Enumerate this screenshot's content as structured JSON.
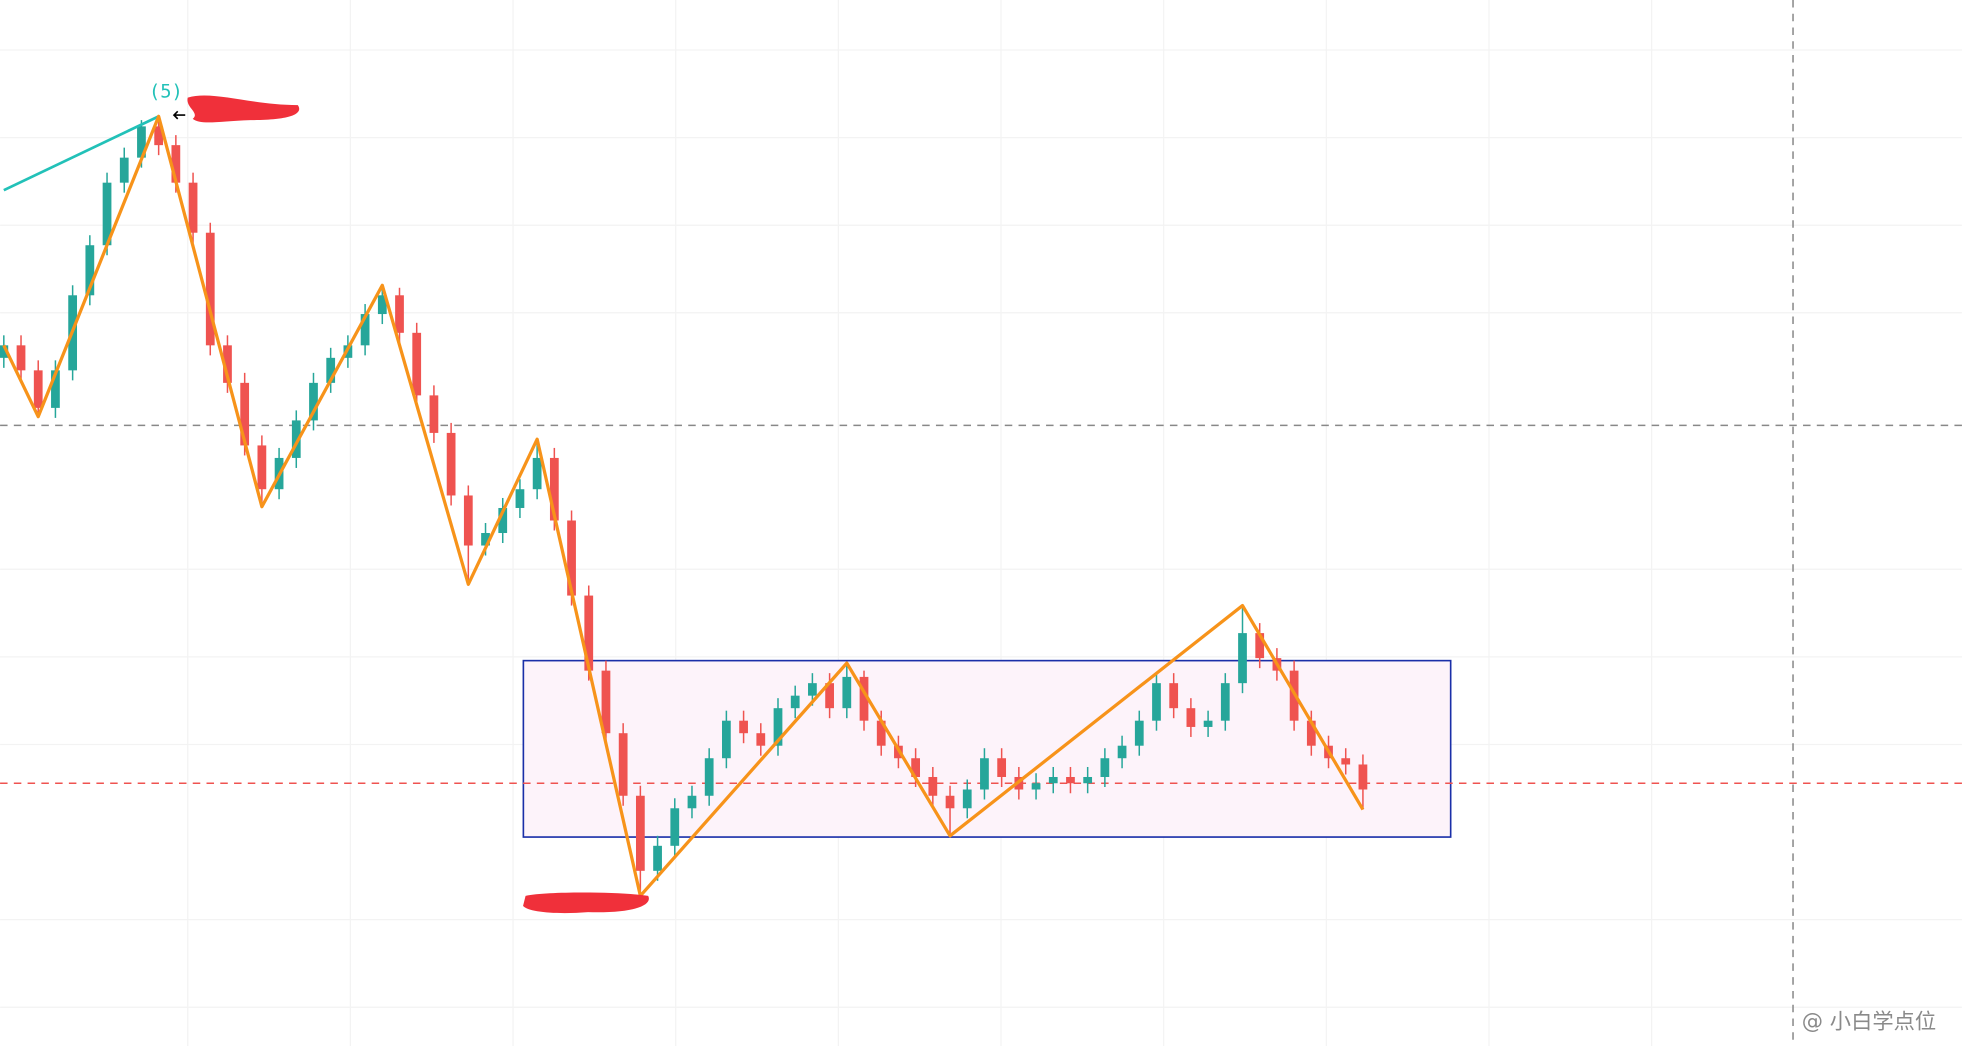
{
  "chart_data": {
    "type": "candlestick",
    "ylim": [
      0,
      836
    ],
    "open": [
      550,
      560,
      540,
      510,
      540,
      600,
      640,
      690,
      710,
      735,
      720,
      690,
      650,
      560,
      530,
      480,
      445,
      470,
      500,
      530,
      550,
      560,
      585,
      600,
      570,
      520,
      490,
      440,
      400,
      410,
      430,
      445,
      470,
      420,
      360,
      300,
      250,
      200,
      140,
      160,
      190,
      200,
      230,
      260,
      250,
      240,
      270,
      280,
      290,
      270,
      295,
      260,
      240,
      230,
      215,
      200,
      190,
      205,
      230,
      215,
      205,
      210,
      215,
      210,
      215,
      230,
      240,
      260,
      290,
      270,
      255,
      260,
      290,
      330,
      310,
      300,
      260,
      240,
      230,
      225
    ],
    "high": [
      568,
      568,
      548,
      548,
      608,
      648,
      698,
      718,
      740,
      743,
      728,
      698,
      658,
      568,
      538,
      488,
      478,
      508,
      538,
      558,
      568,
      593,
      608,
      606,
      578,
      528,
      498,
      448,
      418,
      438,
      453,
      485,
      478,
      428,
      368,
      308,
      258,
      208,
      168,
      198,
      208,
      238,
      268,
      268,
      258,
      278,
      288,
      298,
      298,
      306,
      300,
      268,
      248,
      238,
      223,
      208,
      213,
      238,
      238,
      223,
      218,
      223,
      223,
      223,
      238,
      248,
      268,
      298,
      298,
      278,
      268,
      298,
      352,
      338,
      318,
      308,
      268,
      248,
      238,
      233
    ],
    "low": [
      542,
      532,
      503,
      502,
      532,
      592,
      632,
      682,
      702,
      712,
      682,
      642,
      552,
      522,
      472,
      431,
      437,
      462,
      492,
      522,
      542,
      552,
      577,
      562,
      512,
      482,
      432,
      369,
      392,
      402,
      422,
      437,
      412,
      352,
      292,
      242,
      192,
      120,
      132,
      152,
      182,
      192,
      222,
      242,
      232,
      232,
      262,
      272,
      262,
      262,
      252,
      232,
      222,
      207,
      192,
      168,
      182,
      197,
      207,
      197,
      197,
      202,
      202,
      202,
      207,
      222,
      232,
      252,
      262,
      247,
      247,
      252,
      282,
      302,
      292,
      252,
      232,
      222,
      217,
      189
    ],
    "close": [
      560,
      540,
      510,
      540,
      600,
      640,
      690,
      710,
      735,
      720,
      690,
      650,
      560,
      530,
      480,
      445,
      470,
      500,
      530,
      550,
      560,
      585,
      600,
      570,
      520,
      490,
      440,
      400,
      410,
      430,
      445,
      470,
      420,
      360,
      300,
      250,
      200,
      140,
      160,
      190,
      200,
      230,
      260,
      250,
      240,
      270,
      280,
      290,
      270,
      295,
      260,
      240,
      230,
      215,
      200,
      190,
      205,
      230,
      215,
      205,
      210,
      215,
      210,
      215,
      230,
      240,
      260,
      290,
      270,
      255,
      260,
      290,
      330,
      310,
      300,
      260,
      240,
      230,
      225,
      205
    ],
    "up_color": "#26a69a",
    "down_color": "#ef5350",
    "zigzag": {
      "color": "#f7931a",
      "x": [
        0,
        2,
        9,
        15,
        22,
        27,
        31,
        37,
        49,
        55,
        72,
        79
      ],
      "values": [
        560,
        503,
        743,
        431,
        608,
        369,
        485,
        120,
        306,
        168,
        352,
        189
      ]
    },
    "trend_line": {
      "color": "#22c1b8",
      "x": [
        0,
        9
      ],
      "values": [
        684,
        743
      ]
    },
    "h_lines": [
      {
        "value": 496,
        "color": "#888888"
      },
      {
        "value": 210,
        "color": "#ef5350"
      }
    ],
    "crosshair_x": 104,
    "range_box": {
      "x": [
        30.2,
        84.1
      ],
      "values": [
        167,
        308
      ],
      "color": "#1a2fa8",
      "fill": "#fdf3fa"
    },
    "wave_label": "(5)",
    "watermark": "@ 小白学点位"
  }
}
